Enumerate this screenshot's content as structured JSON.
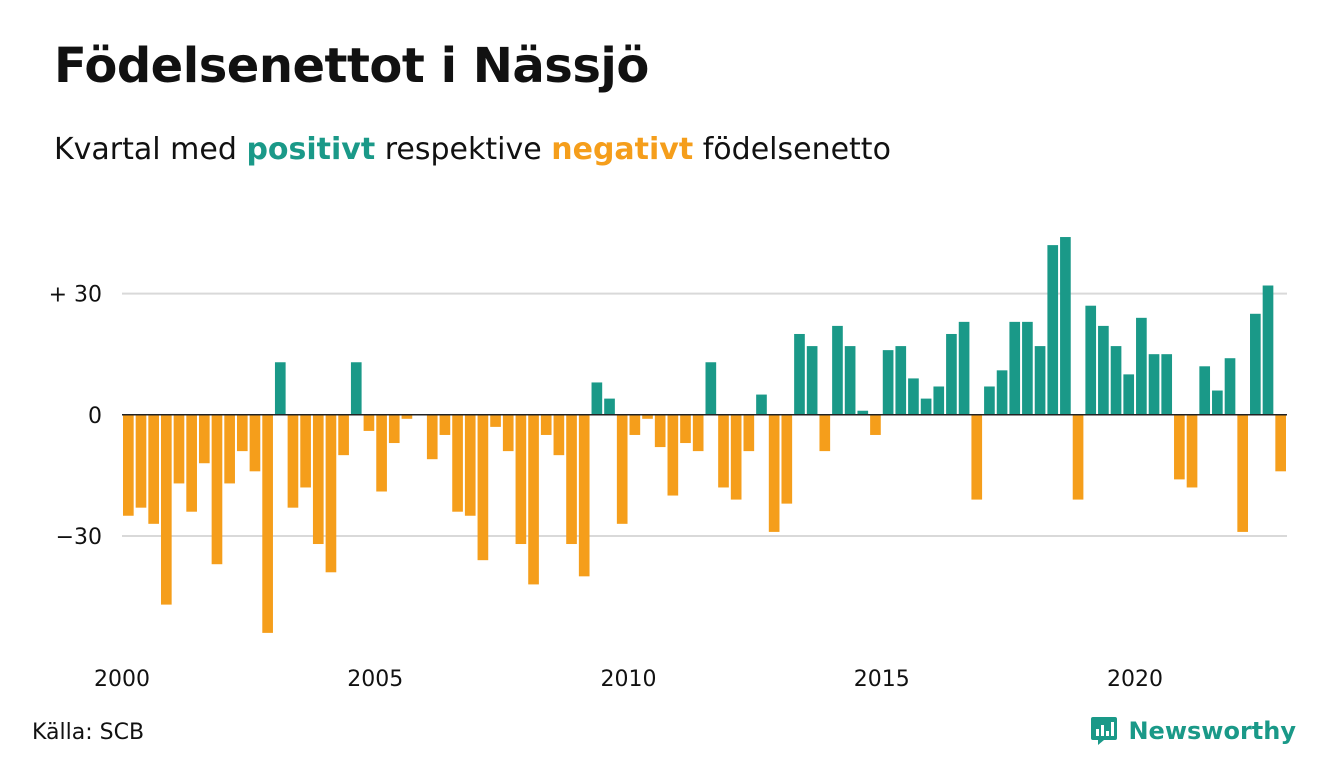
{
  "title": "Födelsenettot i Nässjö",
  "subtitle": {
    "prefix": "Kvartal med",
    "positive_word": "positivt",
    "middle": "respektive",
    "negative_word": "negativt",
    "suffix": "födelsenetto"
  },
  "source": "Källa: SCB",
  "brand": "Newsworthy",
  "colors": {
    "positive": "#1a9988",
    "negative": "#f59e1b",
    "grid": "#d9d9d9",
    "zero": "#222222"
  },
  "chart_data": {
    "type": "bar",
    "title": "Födelsenettot i Nässjö",
    "x_start": 2000,
    "periods_per_year": 4,
    "ylim": [
      -57,
      45
    ],
    "y_ticks": [
      30,
      0,
      -30
    ],
    "y_tick_labels": [
      "+ 30",
      "0",
      "−30"
    ],
    "x_ticks": [
      2000,
      2005,
      2010,
      2015,
      2020
    ],
    "x_tick_labels": [
      "2000",
      "2005",
      "2010",
      "2015",
      "2020"
    ],
    "grid": true,
    "values": [
      -25,
      -23,
      -27,
      -47,
      -17,
      -24,
      -12,
      -37,
      -17,
      -9,
      -14,
      -54,
      13,
      -23,
      -18,
      -32,
      -39,
      -10,
      13,
      -4,
      -19,
      -7,
      -1,
      0,
      -11,
      -5,
      -24,
      -25,
      -36,
      -3,
      -9,
      -32,
      -42,
      -5,
      -10,
      -32,
      -40,
      8,
      4,
      -27,
      -5,
      -1,
      -8,
      -20,
      -7,
      -9,
      13,
      -18,
      -21,
      -9,
      5,
      -29,
      -22,
      20,
      17,
      -9,
      22,
      17,
      1,
      -5,
      16,
      17,
      9,
      4,
      7,
      20,
      23,
      -21,
      7,
      11,
      23,
      23,
      17,
      42,
      44,
      -21,
      27,
      22,
      17,
      10,
      24,
      15,
      15,
      -16,
      -18,
      12,
      6,
      14,
      -29,
      25,
      32,
      -14
    ]
  }
}
